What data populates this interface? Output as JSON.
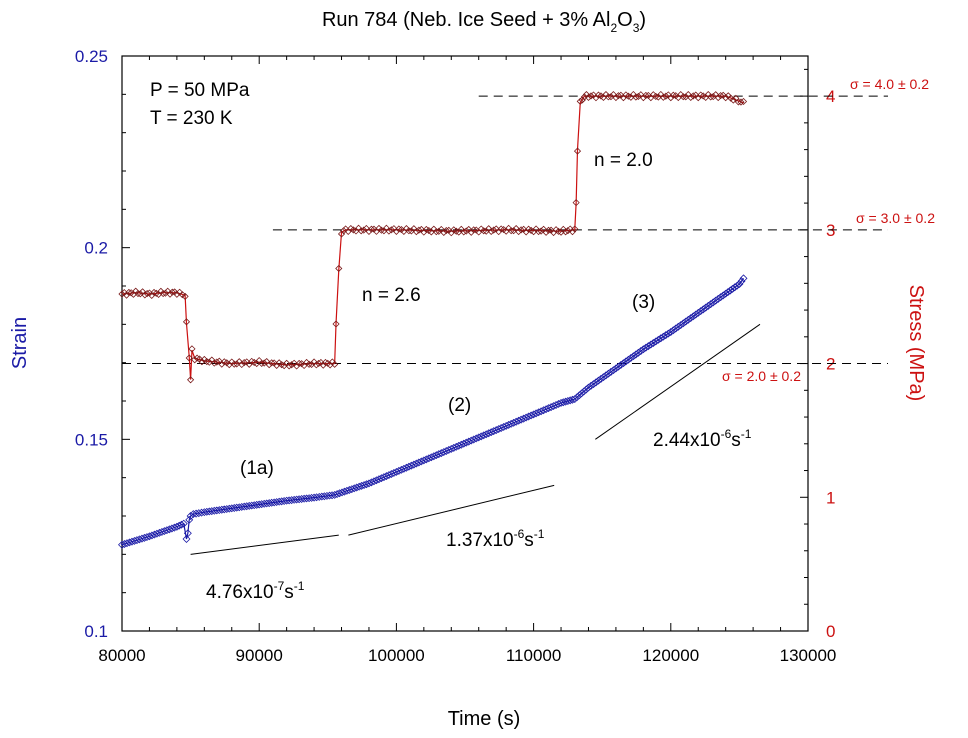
{
  "chart_data": {
    "type": "line",
    "title": {
      "pre": "Run 784 (Neb. Ice Seed + 3% Al",
      "sub1": "2",
      "mid": "O",
      "sub2": "3",
      "post": ")"
    },
    "xlabel": "Time (s)",
    "ylabel_left": "Strain",
    "ylabel_right": "Stress (MPa)",
    "xlim": [
      80000,
      130000
    ],
    "ylim_left": [
      0.1,
      0.25
    ],
    "ylim_right": [
      0,
      4.3
    ],
    "x_ticks": [
      "80000",
      "90000",
      "100000",
      "110000",
      "120000",
      "130000"
    ],
    "y_left_ticks": [
      "0.1",
      "0.15",
      "0.2",
      "0.25"
    ],
    "y_right_ticks": [
      "0",
      "1",
      "2",
      "3",
      "4"
    ],
    "colors": {
      "strain": "#1a1aa6",
      "stress": "#cc1111",
      "fit": "#000000",
      "reference": "#000000"
    },
    "conditions": [
      "P = 50 MPa",
      "T = 230 K"
    ],
    "series": [
      {
        "name": "Strain",
        "axis": "left",
        "marker": "diamond",
        "x": [
          80000,
          82000,
          84000,
          84500,
          84700,
          84800,
          84900,
          85000,
          85200,
          86000,
          88000,
          90000,
          92000,
          94000,
          95500,
          98000,
          100000,
          102000,
          104000,
          106000,
          108000,
          110000,
          112000,
          113000,
          114000,
          116000,
          118000,
          120000,
          122000,
          124000,
          125000,
          125300
        ],
        "y": [
          0.1225,
          0.1247,
          0.1272,
          0.128,
          0.124,
          0.1255,
          0.129,
          0.13,
          0.1305,
          0.131,
          0.132,
          0.133,
          0.134,
          0.1348,
          0.1355,
          0.1385,
          0.1415,
          0.1445,
          0.1475,
          0.1505,
          0.1535,
          0.1565,
          0.1595,
          0.1605,
          0.1635,
          0.1685,
          0.1735,
          0.178,
          0.183,
          0.188,
          0.1905,
          0.192
        ]
      },
      {
        "name": "Stress",
        "axis": "right",
        "marker": "diamond",
        "x": [
          80000,
          81000,
          82000,
          83000,
          84000,
          84600,
          84700,
          84900,
          85000,
          85100,
          85300,
          86000,
          88000,
          90000,
          92000,
          94000,
          95000,
          95500,
          95600,
          95800,
          96000,
          96300,
          98000,
          100000,
          104000,
          108000,
          112000,
          113000,
          113100,
          113200,
          113400,
          113700,
          114000,
          116000,
          118000,
          120000,
          122000,
          124000,
          125300
        ],
        "y": [
          2.52,
          2.53,
          2.52,
          2.53,
          2.53,
          2.51,
          2.3,
          2.05,
          1.88,
          2.1,
          2.04,
          2.02,
          2.0,
          2.01,
          1.99,
          2.0,
          2.0,
          2.0,
          2.3,
          2.7,
          2.98,
          3.0,
          3.0,
          3.0,
          2.99,
          3.0,
          2.99,
          3.0,
          3.2,
          3.6,
          3.95,
          4.0,
          4.0,
          4.0,
          4.0,
          4.0,
          4.0,
          4.0,
          3.95
        ]
      }
    ],
    "fit_lines": [
      {
        "x": [
          85000,
          95800
        ],
        "y": [
          0.12,
          0.125
        ]
      },
      {
        "x": [
          96500,
          111500
        ],
        "y": [
          0.125,
          0.138
        ]
      },
      {
        "x": [
          114500,
          126500
        ],
        "y": [
          0.15,
          0.18
        ]
      }
    ],
    "reference_lines": [
      {
        "stress": 2.0,
        "x_start": 80000,
        "label": "σ = 2.0 ± 0.2"
      },
      {
        "stress": 3.0,
        "x_start": 91000,
        "label": "σ = 3.0 ± 0.2"
      },
      {
        "stress": 4.0,
        "x_start": 106000,
        "label": "σ = 4.0 ± 0.2"
      }
    ],
    "segment_labels": [
      "(1a)",
      "(2)",
      "(3)"
    ],
    "stress_exponents": [
      "n = 2.6",
      "n = 2.0"
    ],
    "rate_labels": [
      {
        "base": "4.76x10",
        "exp": "-7",
        "unit": "s",
        "unit_exp": "-1"
      },
      {
        "base": "1.37x10",
        "exp": "-6",
        "unit": "s",
        "unit_exp": "-1"
      },
      {
        "base": "2.44x10",
        "exp": "-6",
        "unit": "s",
        "unit_exp": "-1"
      }
    ]
  }
}
